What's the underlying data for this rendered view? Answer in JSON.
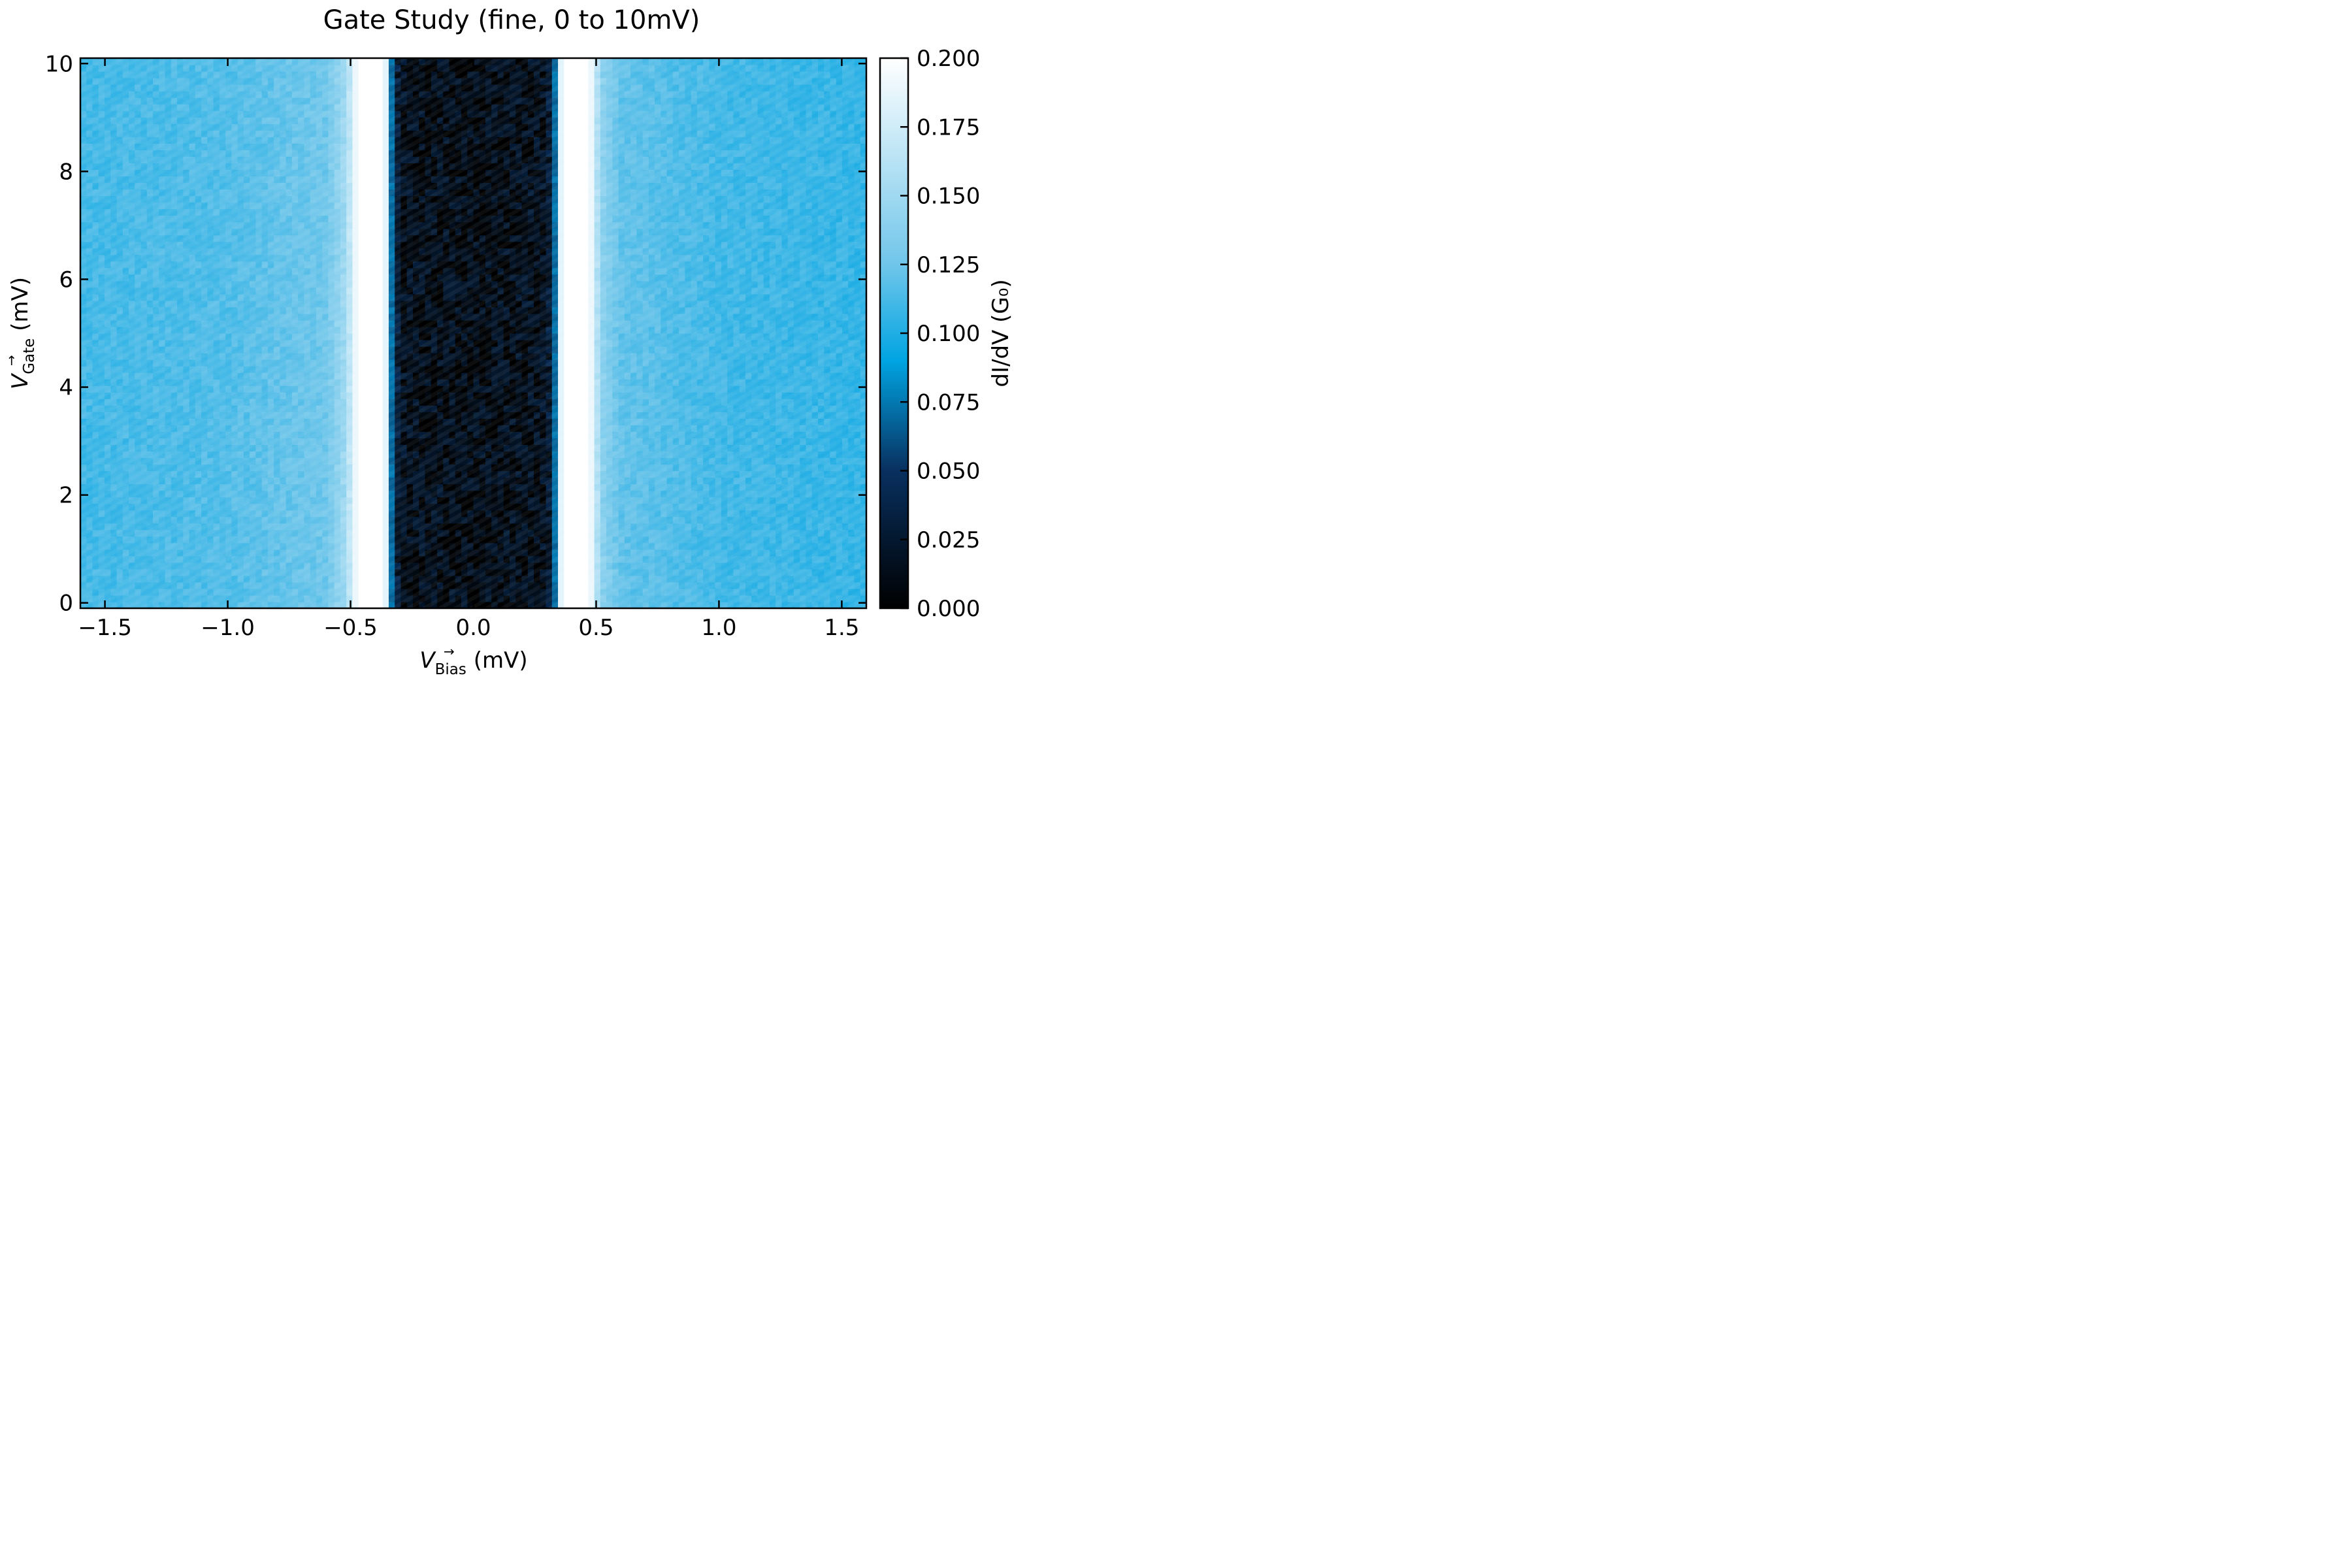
{
  "chart_data": {
    "type": "heatmap",
    "title": "Gate Study (fine, 0 to 10mV)",
    "xlabel": {
      "symbol": "V",
      "subscript": "Bias",
      "unit": " (mV)"
    },
    "ylabel": {
      "symbol": "V",
      "subscript": "Gate",
      "unit": " (mV)"
    },
    "colorbar_label": "dI/dV (G₀)",
    "colormap": "blue-white (black → #0a3f7a → #00a2e0 → #ffffff)",
    "colormap_stops": [
      {
        "v": 0.0,
        "color": "#000000"
      },
      {
        "v": 0.05,
        "color": "#08305f"
      },
      {
        "v": 0.09,
        "color": "#00a4e2"
      },
      {
        "v": 0.125,
        "color": "#70c6ea"
      },
      {
        "v": 0.2,
        "color": "#ffffff"
      }
    ],
    "xlim": [
      -1.6,
      1.6
    ],
    "ylim": [
      -0.1,
      10.1
    ],
    "clim": [
      0.0,
      0.2
    ],
    "xticks": [
      -1.5,
      -1.0,
      -0.5,
      0.0,
      0.5,
      1.0,
      1.5
    ],
    "xtick_labels": [
      "−1.5",
      "−1.0",
      "−0.5",
      "0.0",
      "0.5",
      "1.0",
      "1.5"
    ],
    "yticks": [
      0,
      2,
      4,
      6,
      8,
      10
    ],
    "ytick_labels": [
      "0",
      "2",
      "4",
      "6",
      "8",
      "10"
    ],
    "cbar_ticks": [
      0.0,
      0.025,
      0.05,
      0.075,
      0.1,
      0.125,
      0.15,
      0.175,
      0.2
    ],
    "cbar_tick_labels": [
      "0.000",
      "0.025",
      "0.050",
      "0.075",
      "0.100",
      "0.125",
      "0.150",
      "0.175",
      "0.200"
    ],
    "profile_vs_bias": {
      "bias_mV": [
        -1.6,
        -1.0,
        -0.6,
        -0.52,
        -0.48,
        -0.46,
        -0.36,
        -0.33,
        -0.3,
        0.0,
        0.3,
        0.33,
        0.36,
        0.46,
        0.48,
        0.52,
        0.6,
        1.0,
        1.6
      ],
      "dIdV_G0": [
        0.11,
        0.115,
        0.125,
        0.15,
        0.19,
        0.2,
        0.2,
        0.06,
        0.015,
        0.01,
        0.015,
        0.06,
        0.2,
        0.2,
        0.19,
        0.14,
        0.12,
        0.11,
        0.105
      ]
    },
    "gate_dependence": "none (uniform along gate voltage, with noise)"
  }
}
